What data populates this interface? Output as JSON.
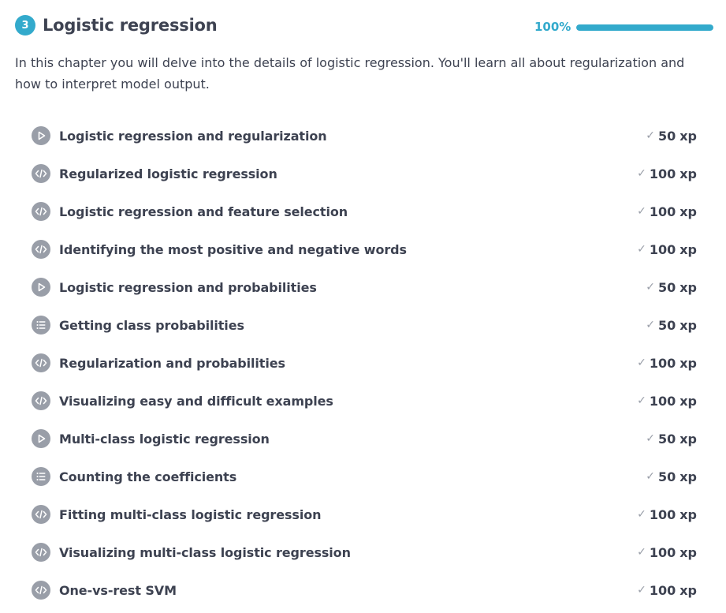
{
  "chapter": {
    "number": "3",
    "title": "Logistic regression",
    "progress_label": "100%",
    "progress_fraction": 1.0,
    "description": "In this chapter you will delve into the details of logistic regression. You'll learn all about regularization and how to interpret model output."
  },
  "xp_unit": "xp",
  "exercises": [
    {
      "title": "Logistic regression and regularization",
      "type": "video",
      "xp": "50"
    },
    {
      "title": "Regularized logistic regression",
      "type": "code",
      "xp": "100"
    },
    {
      "title": "Logistic regression and feature selection",
      "type": "code",
      "xp": "100"
    },
    {
      "title": "Identifying the most positive and negative words",
      "type": "code",
      "xp": "100"
    },
    {
      "title": "Logistic regression and probabilities",
      "type": "video",
      "xp": "50"
    },
    {
      "title": "Getting class probabilities",
      "type": "multiple-choice",
      "xp": "50"
    },
    {
      "title": "Regularization and probabilities",
      "type": "code",
      "xp": "100"
    },
    {
      "title": "Visualizing easy and difficult examples",
      "type": "code",
      "xp": "100"
    },
    {
      "title": "Multi-class logistic regression",
      "type": "video",
      "xp": "50"
    },
    {
      "title": "Counting the coefficients",
      "type": "multiple-choice",
      "xp": "50"
    },
    {
      "title": "Fitting multi-class logistic regression",
      "type": "code",
      "xp": "100"
    },
    {
      "title": "Visualizing multi-class logistic regression",
      "type": "code",
      "xp": "100"
    },
    {
      "title": "One-vs-rest SVM",
      "type": "code",
      "xp": "100"
    }
  ],
  "colors": {
    "accent": "#33aacc",
    "icon_gray": "#999ea8",
    "text": "#3d4251"
  }
}
